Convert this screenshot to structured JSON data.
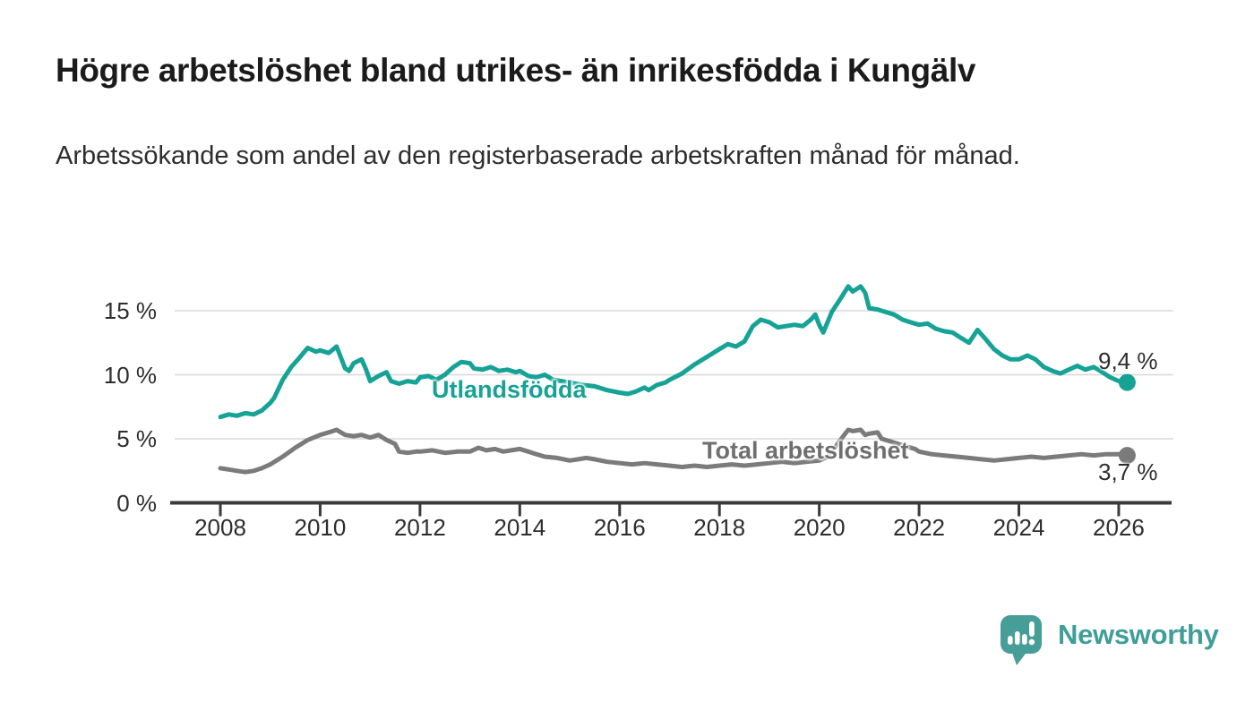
{
  "header": {
    "title": "Högre arbetslöshet bland utrikes- än inrikesfödda i Kungälv",
    "subtitle": "Arbetssökande som andel av den registerbaserade arbetskraften månad för månad."
  },
  "chart_data": {
    "type": "line",
    "x_range": [
      2008,
      2026.17
    ],
    "y_range": [
      0,
      17.5
    ],
    "grid": "horizontal",
    "x_ticks": [
      {
        "value": 2008,
        "label": "2008"
      },
      {
        "value": 2010,
        "label": "2010"
      },
      {
        "value": 2012,
        "label": "2012"
      },
      {
        "value": 2014,
        "label": "2014"
      },
      {
        "value": 2016,
        "label": "2016"
      },
      {
        "value": 2018,
        "label": "2018"
      },
      {
        "value": 2020,
        "label": "2020"
      },
      {
        "value": 2022,
        "label": "2022"
      },
      {
        "value": 2024,
        "label": "2024"
      },
      {
        "value": 2026,
        "label": "2026"
      }
    ],
    "y_ticks": [
      {
        "value": 0,
        "label": "0 %"
      },
      {
        "value": 5,
        "label": "5 %"
      },
      {
        "value": 10,
        "label": "10 %"
      },
      {
        "value": 15,
        "label": "15 %"
      }
    ],
    "series": [
      {
        "name": "Utlandsfödda",
        "color": "#16a295",
        "end_label": "9,4 %",
        "points": [
          [
            2008.0,
            6.7
          ],
          [
            2008.17,
            6.9
          ],
          [
            2008.33,
            6.8
          ],
          [
            2008.5,
            7.0
          ],
          [
            2008.67,
            6.9
          ],
          [
            2008.83,
            7.2
          ],
          [
            2009.0,
            7.8
          ],
          [
            2009.08,
            8.2
          ],
          [
            2009.25,
            9.6
          ],
          [
            2009.42,
            10.6
          ],
          [
            2009.58,
            11.3
          ],
          [
            2009.75,
            12.1
          ],
          [
            2009.92,
            11.8
          ],
          [
            2010.0,
            11.9
          ],
          [
            2010.17,
            11.7
          ],
          [
            2010.33,
            12.2
          ],
          [
            2010.42,
            11.3
          ],
          [
            2010.5,
            10.5
          ],
          [
            2010.58,
            10.3
          ],
          [
            2010.67,
            10.9
          ],
          [
            2010.83,
            11.2
          ],
          [
            2010.92,
            10.4
          ],
          [
            2011.0,
            9.5
          ],
          [
            2011.17,
            9.9
          ],
          [
            2011.33,
            10.2
          ],
          [
            2011.42,
            9.5
          ],
          [
            2011.58,
            9.3
          ],
          [
            2011.75,
            9.5
          ],
          [
            2011.92,
            9.4
          ],
          [
            2012.0,
            9.8
          ],
          [
            2012.17,
            9.9
          ],
          [
            2012.33,
            9.6
          ],
          [
            2012.5,
            10.0
          ],
          [
            2012.67,
            10.6
          ],
          [
            2012.83,
            11.0
          ],
          [
            2013.0,
            10.9
          ],
          [
            2013.08,
            10.5
          ],
          [
            2013.25,
            10.4
          ],
          [
            2013.42,
            10.6
          ],
          [
            2013.58,
            10.3
          ],
          [
            2013.75,
            10.4
          ],
          [
            2013.92,
            10.2
          ],
          [
            2014.0,
            10.3
          ],
          [
            2014.17,
            9.9
          ],
          [
            2014.33,
            9.8
          ],
          [
            2014.5,
            10.0
          ],
          [
            2014.67,
            9.6
          ],
          [
            2014.83,
            9.5
          ],
          [
            2015.0,
            9.4
          ],
          [
            2015.25,
            9.2
          ],
          [
            2015.5,
            9.1
          ],
          [
            2015.75,
            8.8
          ],
          [
            2016.0,
            8.6
          ],
          [
            2016.17,
            8.5
          ],
          [
            2016.33,
            8.7
          ],
          [
            2016.5,
            9.0
          ],
          [
            2016.58,
            8.8
          ],
          [
            2016.75,
            9.2
          ],
          [
            2016.92,
            9.4
          ],
          [
            2017.0,
            9.6
          ],
          [
            2017.25,
            10.1
          ],
          [
            2017.5,
            10.8
          ],
          [
            2017.75,
            11.4
          ],
          [
            2018.0,
            12.0
          ],
          [
            2018.17,
            12.4
          ],
          [
            2018.33,
            12.2
          ],
          [
            2018.5,
            12.6
          ],
          [
            2018.67,
            13.8
          ],
          [
            2018.83,
            14.3
          ],
          [
            2019.0,
            14.1
          ],
          [
            2019.17,
            13.7
          ],
          [
            2019.33,
            13.8
          ],
          [
            2019.5,
            13.9
          ],
          [
            2019.67,
            13.8
          ],
          [
            2019.83,
            14.3
          ],
          [
            2019.92,
            14.7
          ],
          [
            2020.0,
            13.9
          ],
          [
            2020.08,
            13.3
          ],
          [
            2020.25,
            14.9
          ],
          [
            2020.42,
            15.9
          ],
          [
            2020.58,
            16.9
          ],
          [
            2020.67,
            16.5
          ],
          [
            2020.83,
            16.9
          ],
          [
            2020.92,
            16.4
          ],
          [
            2021.0,
            15.2
          ],
          [
            2021.17,
            15.1
          ],
          [
            2021.33,
            14.9
          ],
          [
            2021.5,
            14.7
          ],
          [
            2021.67,
            14.3
          ],
          [
            2021.83,
            14.1
          ],
          [
            2022.0,
            13.9
          ],
          [
            2022.17,
            14.0
          ],
          [
            2022.33,
            13.6
          ],
          [
            2022.5,
            13.4
          ],
          [
            2022.67,
            13.3
          ],
          [
            2022.83,
            12.9
          ],
          [
            2023.0,
            12.5
          ],
          [
            2023.17,
            13.5
          ],
          [
            2023.33,
            12.8
          ],
          [
            2023.5,
            12.0
          ],
          [
            2023.67,
            11.5
          ],
          [
            2023.83,
            11.2
          ],
          [
            2024.0,
            11.2
          ],
          [
            2024.17,
            11.5
          ],
          [
            2024.33,
            11.2
          ],
          [
            2024.5,
            10.6
          ],
          [
            2024.67,
            10.3
          ],
          [
            2024.83,
            10.1
          ],
          [
            2025.0,
            10.4
          ],
          [
            2025.17,
            10.7
          ],
          [
            2025.33,
            10.4
          ],
          [
            2025.5,
            10.6
          ],
          [
            2025.67,
            10.2
          ],
          [
            2025.83,
            9.8
          ],
          [
            2026.0,
            9.5
          ],
          [
            2026.17,
            9.4
          ]
        ]
      },
      {
        "name": "Total arbetslöshet",
        "color": "#7b7b7b",
        "end_label": "3,7 %",
        "points": [
          [
            2008.0,
            2.7
          ],
          [
            2008.17,
            2.6
          ],
          [
            2008.33,
            2.5
          ],
          [
            2008.5,
            2.4
          ],
          [
            2008.67,
            2.5
          ],
          [
            2008.83,
            2.7
          ],
          [
            2009.0,
            3.0
          ],
          [
            2009.25,
            3.6
          ],
          [
            2009.5,
            4.3
          ],
          [
            2009.75,
            4.9
          ],
          [
            2010.0,
            5.3
          ],
          [
            2010.17,
            5.5
          ],
          [
            2010.33,
            5.7
          ],
          [
            2010.5,
            5.3
          ],
          [
            2010.67,
            5.2
          ],
          [
            2010.83,
            5.3
          ],
          [
            2011.0,
            5.1
          ],
          [
            2011.17,
            5.3
          ],
          [
            2011.33,
            4.9
          ],
          [
            2011.5,
            4.6
          ],
          [
            2011.58,
            4.0
          ],
          [
            2011.75,
            3.9
          ],
          [
            2011.92,
            4.0
          ],
          [
            2012.0,
            4.0
          ],
          [
            2012.25,
            4.1
          ],
          [
            2012.5,
            3.9
          ],
          [
            2012.75,
            4.0
          ],
          [
            2013.0,
            4.0
          ],
          [
            2013.17,
            4.3
          ],
          [
            2013.33,
            4.1
          ],
          [
            2013.5,
            4.2
          ],
          [
            2013.67,
            4.0
          ],
          [
            2013.83,
            4.1
          ],
          [
            2014.0,
            4.2
          ],
          [
            2014.17,
            4.0
          ],
          [
            2014.33,
            3.8
          ],
          [
            2014.5,
            3.6
          ],
          [
            2014.75,
            3.5
          ],
          [
            2015.0,
            3.3
          ],
          [
            2015.17,
            3.4
          ],
          [
            2015.33,
            3.5
          ],
          [
            2015.5,
            3.4
          ],
          [
            2015.75,
            3.2
          ],
          [
            2016.0,
            3.1
          ],
          [
            2016.25,
            3.0
          ],
          [
            2016.5,
            3.1
          ],
          [
            2016.75,
            3.0
          ],
          [
            2017.0,
            2.9
          ],
          [
            2017.25,
            2.8
          ],
          [
            2017.5,
            2.9
          ],
          [
            2017.75,
            2.8
          ],
          [
            2018.0,
            2.9
          ],
          [
            2018.25,
            3.0
          ],
          [
            2018.5,
            2.9
          ],
          [
            2018.75,
            3.0
          ],
          [
            2019.0,
            3.1
          ],
          [
            2019.25,
            3.2
          ],
          [
            2019.5,
            3.1
          ],
          [
            2019.75,
            3.2
          ],
          [
            2020.0,
            3.3
          ],
          [
            2020.17,
            3.6
          ],
          [
            2020.33,
            4.4
          ],
          [
            2020.5,
            5.3
          ],
          [
            2020.58,
            5.7
          ],
          [
            2020.67,
            5.6
          ],
          [
            2020.83,
            5.7
          ],
          [
            2020.92,
            5.3
          ],
          [
            2021.0,
            5.4
          ],
          [
            2021.17,
            5.5
          ],
          [
            2021.25,
            5.0
          ],
          [
            2021.42,
            4.8
          ],
          [
            2021.58,
            4.6
          ],
          [
            2021.75,
            4.4
          ],
          [
            2021.92,
            4.2
          ],
          [
            2022.0,
            4.0
          ],
          [
            2022.25,
            3.8
          ],
          [
            2022.5,
            3.7
          ],
          [
            2022.75,
            3.6
          ],
          [
            2023.0,
            3.5
          ],
          [
            2023.25,
            3.4
          ],
          [
            2023.5,
            3.3
          ],
          [
            2023.75,
            3.4
          ],
          [
            2024.0,
            3.5
          ],
          [
            2024.25,
            3.6
          ],
          [
            2024.5,
            3.5
          ],
          [
            2024.75,
            3.6
          ],
          [
            2025.0,
            3.7
          ],
          [
            2025.25,
            3.8
          ],
          [
            2025.5,
            3.7
          ],
          [
            2025.75,
            3.8
          ],
          [
            2026.0,
            3.8
          ],
          [
            2026.17,
            3.7
          ]
        ]
      }
    ],
    "colors": {
      "axis": "#3a3a3a",
      "gridline": "#d8d8d8",
      "tick_label": "#2e2e2e"
    }
  },
  "footer": {
    "brand": "Newsworthy",
    "brand_color": "#479e99"
  }
}
